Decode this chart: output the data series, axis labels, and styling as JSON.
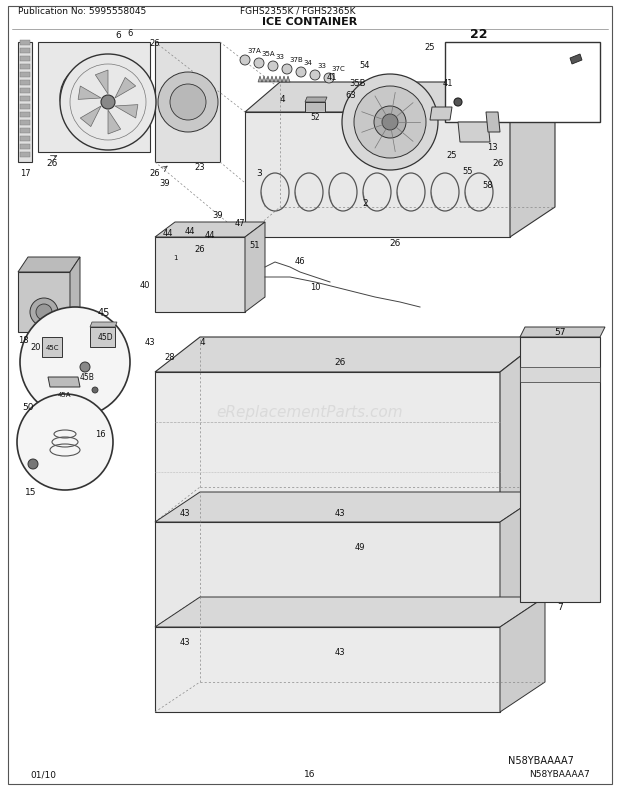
{
  "pub_no": "Publication No: 5995558045",
  "model": "FGHS2355K / FGHS2365K",
  "title": "ICE CONTAINER",
  "date": "01/10",
  "page": "16",
  "diagram_id": "N58YBAAAA7",
  "watermark": "eReplacementParts.com",
  "bg_color": "#ffffff",
  "line_color": "#333333",
  "text_color": "#111111",
  "light_gray": "#d8d8d8",
  "mid_gray": "#aaaaaa",
  "dark_gray": "#666666",
  "fig_width": 6.2,
  "fig_height": 8.03,
  "dpi": 100
}
